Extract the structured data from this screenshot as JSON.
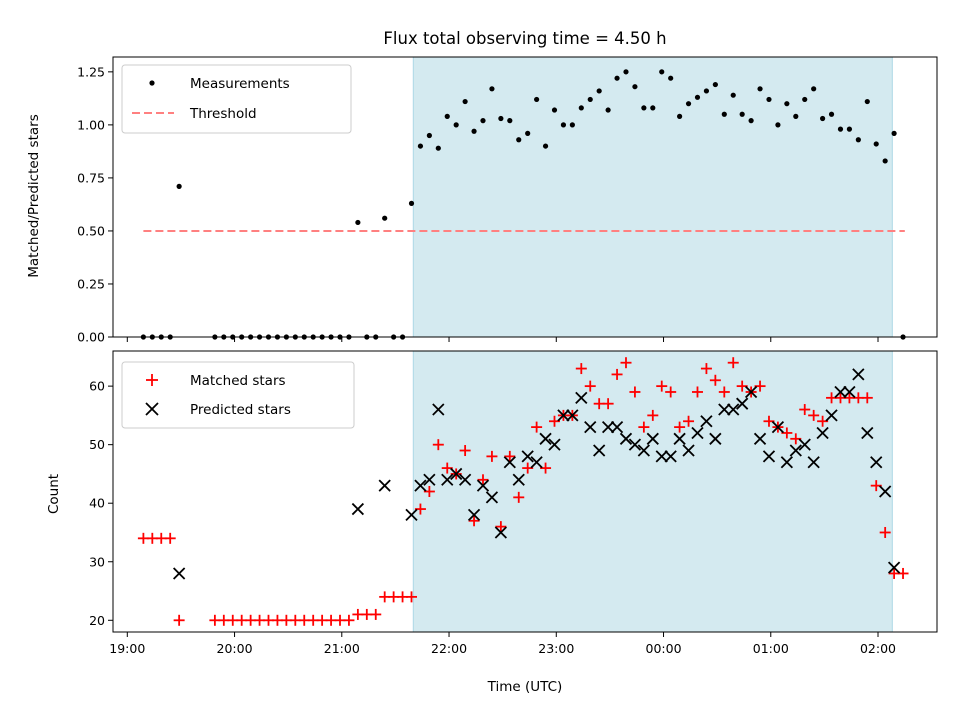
{
  "chart_data": [
    {
      "type": "scatter",
      "title": "Flux total observing time = 4.50 h",
      "xlabel": "",
      "ylabel": "Matched/Predicted stars",
      "ylim": [
        0,
        1.32
      ],
      "yticks": [
        "0.00",
        "0.25",
        "0.50",
        "0.75",
        "1.00",
        "1.25"
      ],
      "xlim": [
        "18:52",
        "02:33"
      ],
      "shaded_span": [
        "21:40",
        "02:08"
      ],
      "shaded_color": "#d4eaf0",
      "threshold": {
        "y": 0.5,
        "x_range": [
          "19:09",
          "02:15"
        ],
        "color": "#ff8080"
      },
      "legend": {
        "position": "upper-left",
        "entries": [
          "Measurements",
          "Threshold"
        ]
      },
      "series": [
        {
          "name": "Measurements",
          "marker": "dot",
          "color": "#000000",
          "x": [
            "19:09",
            "19:14",
            "19:19",
            "19:24",
            "19:29",
            "19:49",
            "19:54",
            "19:59",
            "20:04",
            "20:09",
            "20:14",
            "20:19",
            "20:24",
            "20:29",
            "20:34",
            "20:39",
            "20:44",
            "20:49",
            "20:54",
            "20:59",
            "21:04",
            "21:09",
            "21:14",
            "21:19",
            "21:24",
            "21:29",
            "21:34",
            "21:39",
            "21:44",
            "21:49",
            "21:54",
            "21:59",
            "22:04",
            "22:09",
            "22:14",
            "22:19",
            "22:24",
            "22:29",
            "22:34",
            "22:39",
            "22:44",
            "22:49",
            "22:54",
            "22:59",
            "23:04",
            "23:09",
            "23:14",
            "23:19",
            "23:24",
            "23:29",
            "23:34",
            "23:39",
            "23:44",
            "23:49",
            "23:54",
            "23:59",
            "00:04",
            "00:09",
            "00:14",
            "00:19",
            "00:24",
            "00:29",
            "00:34",
            "00:39",
            "00:44",
            "00:49",
            "00:54",
            "00:59",
            "01:04",
            "01:09",
            "01:14",
            "01:19",
            "01:24",
            "01:29",
            "01:34",
            "01:39",
            "01:44",
            "01:49",
            "01:54",
            "01:59",
            "02:04",
            "02:09",
            "02:14"
          ],
          "y": [
            0,
            0,
            0,
            0,
            0.71,
            0,
            0,
            0,
            0,
            0,
            0,
            0,
            0,
            0,
            0,
            0,
            0,
            0,
            0,
            0,
            0,
            0.54,
            0,
            0,
            0.56,
            0,
            0,
            0.63,
            0.9,
            0.95,
            0.89,
            1.04,
            1.0,
            1.11,
            0.97,
            1.02,
            1.17,
            1.03,
            1.02,
            0.93,
            0.96,
            1.12,
            0.9,
            1.07,
            1.0,
            1.0,
            1.08,
            1.12,
            1.16,
            1.07,
            1.22,
            1.25,
            1.18,
            1.08,
            1.08,
            1.25,
            1.22,
            1.04,
            1.1,
            1.13,
            1.16,
            1.19,
            1.05,
            1.14,
            1.05,
            1.02,
            1.17,
            1.12,
            1.0,
            1.1,
            1.04,
            1.12,
            1.17,
            1.03,
            1.05,
            0.98,
            0.98,
            0.93,
            1.11,
            0.91,
            0.83,
            0.96,
            0
          ]
        }
      ]
    },
    {
      "type": "scatter",
      "title": "",
      "xlabel": "Time (UTC)",
      "ylabel": "Count",
      "ylim": [
        18,
        66
      ],
      "yticks": [
        "20",
        "30",
        "40",
        "50",
        "60"
      ],
      "xlim": [
        "18:52",
        "02:33"
      ],
      "xticks": [
        "19:00",
        "20:00",
        "21:00",
        "22:00",
        "23:00",
        "00:00",
        "01:00",
        "02:00"
      ],
      "shaded_span": [
        "21:40",
        "02:08"
      ],
      "shaded_color": "#d4eaf0",
      "legend": {
        "position": "upper-left",
        "entries": [
          "Matched stars",
          "Predicted stars"
        ]
      },
      "series": [
        {
          "name": "Matched stars",
          "marker": "plus",
          "color": "#ff0000",
          "x": [
            "19:09",
            "19:14",
            "19:19",
            "19:24",
            "19:29",
            "19:49",
            "19:54",
            "19:59",
            "20:04",
            "20:09",
            "20:14",
            "20:19",
            "20:24",
            "20:29",
            "20:34",
            "20:39",
            "20:44",
            "20:49",
            "20:54",
            "20:59",
            "21:04",
            "21:09",
            "21:14",
            "21:19",
            "21:24",
            "21:29",
            "21:34",
            "21:39",
            "21:44",
            "21:49",
            "21:54",
            "21:59",
            "22:04",
            "22:09",
            "22:14",
            "22:19",
            "22:24",
            "22:29",
            "22:34",
            "22:39",
            "22:44",
            "22:49",
            "22:54",
            "22:59",
            "23:04",
            "23:09",
            "23:14",
            "23:19",
            "23:24",
            "23:29",
            "23:34",
            "23:39",
            "23:44",
            "23:49",
            "23:54",
            "23:59",
            "00:04",
            "00:09",
            "00:14",
            "00:19",
            "00:24",
            "00:29",
            "00:34",
            "00:39",
            "00:44",
            "00:49",
            "00:54",
            "00:59",
            "01:04",
            "01:09",
            "01:14",
            "01:19",
            "01:24",
            "01:29",
            "01:34",
            "01:39",
            "01:44",
            "01:49",
            "01:54",
            "01:59",
            "02:04",
            "02:09",
            "02:14"
          ],
          "y": [
            34,
            34,
            34,
            34,
            20,
            20,
            20,
            20,
            20,
            20,
            20,
            20,
            20,
            20,
            20,
            20,
            20,
            20,
            20,
            20,
            20,
            21,
            21,
            21,
            24,
            24,
            24,
            24,
            39,
            42,
            50,
            46,
            45,
            49,
            37,
            44,
            48,
            36,
            48,
            41,
            46,
            53,
            46,
            54,
            55,
            55,
            63,
            60,
            57,
            57,
            62,
            64,
            59,
            53,
            55,
            60,
            59,
            53,
            54,
            59,
            63,
            61,
            59,
            64,
            60,
            59,
            60,
            54,
            53,
            52,
            51,
            56,
            55,
            54,
            58,
            58,
            58,
            58,
            58,
            43,
            35,
            28,
            28
          ]
        },
        {
          "name": "Predicted stars",
          "marker": "x",
          "color": "#000000",
          "x": [
            "19:29",
            "21:09",
            "21:24",
            "21:39",
            "21:44",
            "21:49",
            "21:54",
            "21:59",
            "22:04",
            "22:09",
            "22:14",
            "22:19",
            "22:24",
            "22:29",
            "22:34",
            "22:39",
            "22:44",
            "22:49",
            "22:54",
            "22:59",
            "23:04",
            "23:09",
            "23:14",
            "23:19",
            "23:24",
            "23:29",
            "23:34",
            "23:39",
            "23:44",
            "23:49",
            "23:54",
            "23:59",
            "00:04",
            "00:09",
            "00:14",
            "00:19",
            "00:24",
            "00:29",
            "00:34",
            "00:39",
            "00:44",
            "00:49",
            "00:54",
            "00:59",
            "01:04",
            "01:09",
            "01:14",
            "01:19",
            "01:24",
            "01:29",
            "01:34",
            "01:39",
            "01:44",
            "01:49",
            "01:54",
            "01:59",
            "02:04",
            "02:09"
          ],
          "y": [
            28,
            39,
            43,
            38,
            43,
            44,
            56,
            44,
            45,
            44,
            38,
            43,
            41,
            35,
            47,
            44,
            48,
            47,
            51,
            50,
            55,
            55,
            58,
            53,
            49,
            53,
            53,
            51,
            50,
            49,
            51,
            48,
            48,
            51,
            49,
            52,
            54,
            51,
            56,
            56,
            57,
            59,
            51,
            48,
            53,
            47,
            49,
            50,
            47,
            52,
            55,
            59,
            59,
            62,
            52,
            47,
            42,
            29
          ]
        }
      ]
    }
  ]
}
